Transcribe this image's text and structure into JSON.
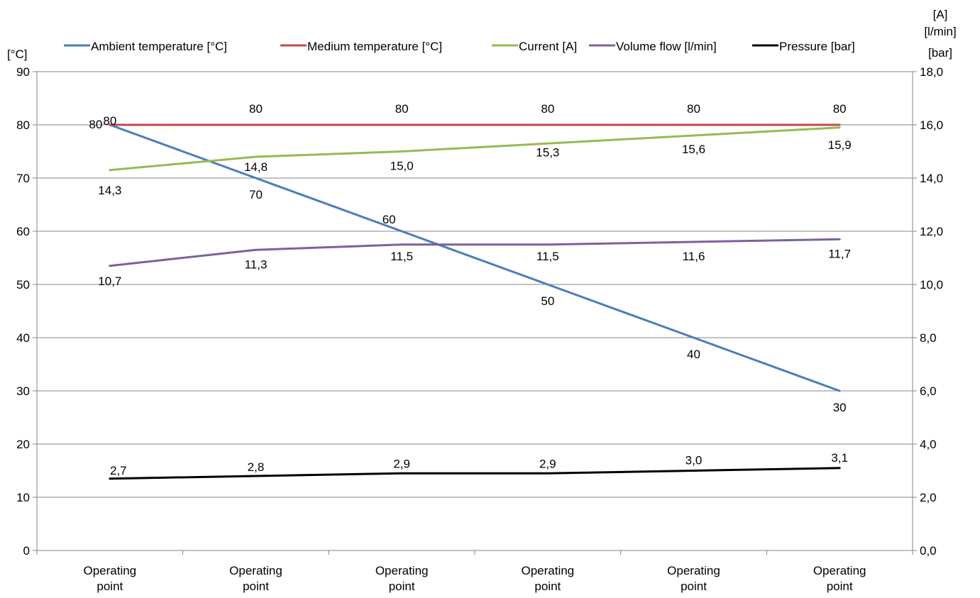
{
  "chart_data": {
    "type": "line",
    "categories": [
      "Operating point",
      "Operating point",
      "Operating point",
      "Operating point",
      "Operating point",
      "Operating point"
    ],
    "y_left": {
      "unit_label": "[°C]",
      "ylim": [
        0,
        90
      ],
      "ticks": [
        "0",
        "10",
        "20",
        "30",
        "40",
        "50",
        "60",
        "70",
        "80",
        "90"
      ]
    },
    "y_right": {
      "unit_labels": [
        "[A]",
        "[l/min]",
        "[bar]"
      ],
      "ylim": [
        0,
        18
      ],
      "ticks": [
        "0,0",
        "2,0",
        "4,0",
        "6,0",
        "8,0",
        "10,0",
        "12,0",
        "14,0",
        "16,0",
        "18,0"
      ]
    },
    "grid": true,
    "legend_position": "top",
    "series": [
      {
        "name": "Ambient temperature [°C]",
        "axis": "left",
        "color": "#4a7ebb",
        "values": [
          80,
          70,
          60,
          50,
          40,
          30
        ],
        "labels": [
          "80",
          "70",
          "60",
          "50",
          "40",
          "30"
        ]
      },
      {
        "name": "Medium temperature [°C]",
        "axis": "left",
        "color": "#be4b48",
        "values": [
          80,
          80,
          80,
          80,
          80,
          80
        ],
        "labels": [
          "80",
          "80",
          "80",
          "80",
          "80",
          "80"
        ]
      },
      {
        "name": "Current [A]",
        "axis": "right",
        "color": "#98b954",
        "values": [
          14.3,
          14.8,
          15.0,
          15.3,
          15.6,
          15.9
        ],
        "labels": [
          "14,3",
          "14,8",
          "15,0",
          "15,3",
          "15,6",
          "15,9"
        ]
      },
      {
        "name": "Volume flow [l/min]",
        "axis": "right",
        "color": "#7d60a0",
        "values": [
          10.7,
          11.3,
          11.5,
          11.5,
          11.6,
          11.7
        ],
        "labels": [
          "10,7",
          "11,3",
          "11,5",
          "11,5",
          "11,6",
          "11,7"
        ]
      },
      {
        "name": "Pressure [bar]",
        "axis": "right",
        "color": "#000000",
        "values": [
          2.7,
          2.8,
          2.9,
          2.9,
          3.0,
          3.1
        ],
        "labels": [
          "2,7",
          "2,8",
          "2,9",
          "2,9",
          "3,0",
          "3,1"
        ]
      }
    ]
  }
}
